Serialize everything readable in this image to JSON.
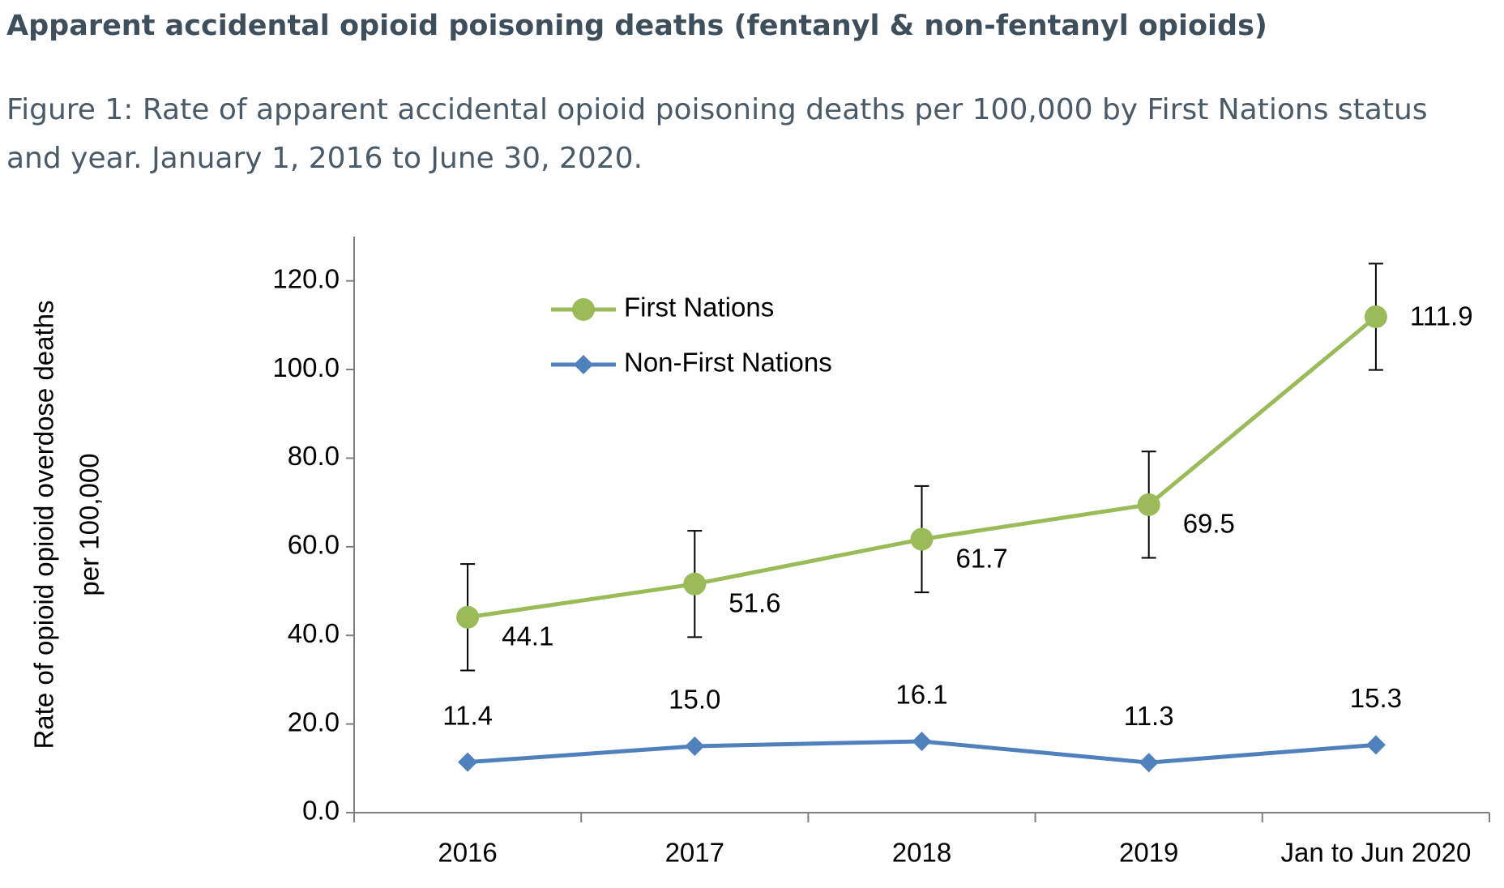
{
  "chart_data": {
    "type": "line",
    "title": "Apparent accidental opioid poisoning deaths (fentanyl & non-fentanyl opioids)",
    "subtitle": "Figure 1: Rate of apparent accidental opioid poisoning deaths per 100,000 by First Nations status and year. January 1, 2016 to June 30, 2020.",
    "ylabel": [
      "Rate of opioid opioid overdose deaths",
      "per 100,000"
    ],
    "categories": [
      "2016",
      "2017",
      "2018",
      "2019",
      "Jan to Jun 2020"
    ],
    "series": [
      {
        "name": "First Nations",
        "color": "#9bbb59",
        "marker": "circle",
        "values": [
          44.1,
          51.6,
          61.7,
          69.5,
          111.9
        ],
        "errors": [
          12,
          12,
          12,
          12,
          12
        ]
      },
      {
        "name": "Non-First Nations",
        "color": "#4f81bd",
        "marker": "diamond",
        "values": [
          11.4,
          15.0,
          16.1,
          11.3,
          15.3
        ],
        "value_labels": [
          "11.4",
          "15.0",
          "16.1",
          "11.3",
          "15.3"
        ]
      }
    ],
    "ylim": [
      0,
      130
    ],
    "yticks": [
      {
        "value": 0,
        "label": "0.0"
      },
      {
        "value": 20,
        "label": "20.0"
      },
      {
        "value": 40,
        "label": "40.0"
      },
      {
        "value": 60,
        "label": "60.0"
      },
      {
        "value": 80,
        "label": "80.0"
      },
      {
        "value": 100,
        "label": "100.0"
      },
      {
        "value": 120,
        "label": "120.0"
      }
    ],
    "grid": false,
    "legend": "upper-left"
  }
}
